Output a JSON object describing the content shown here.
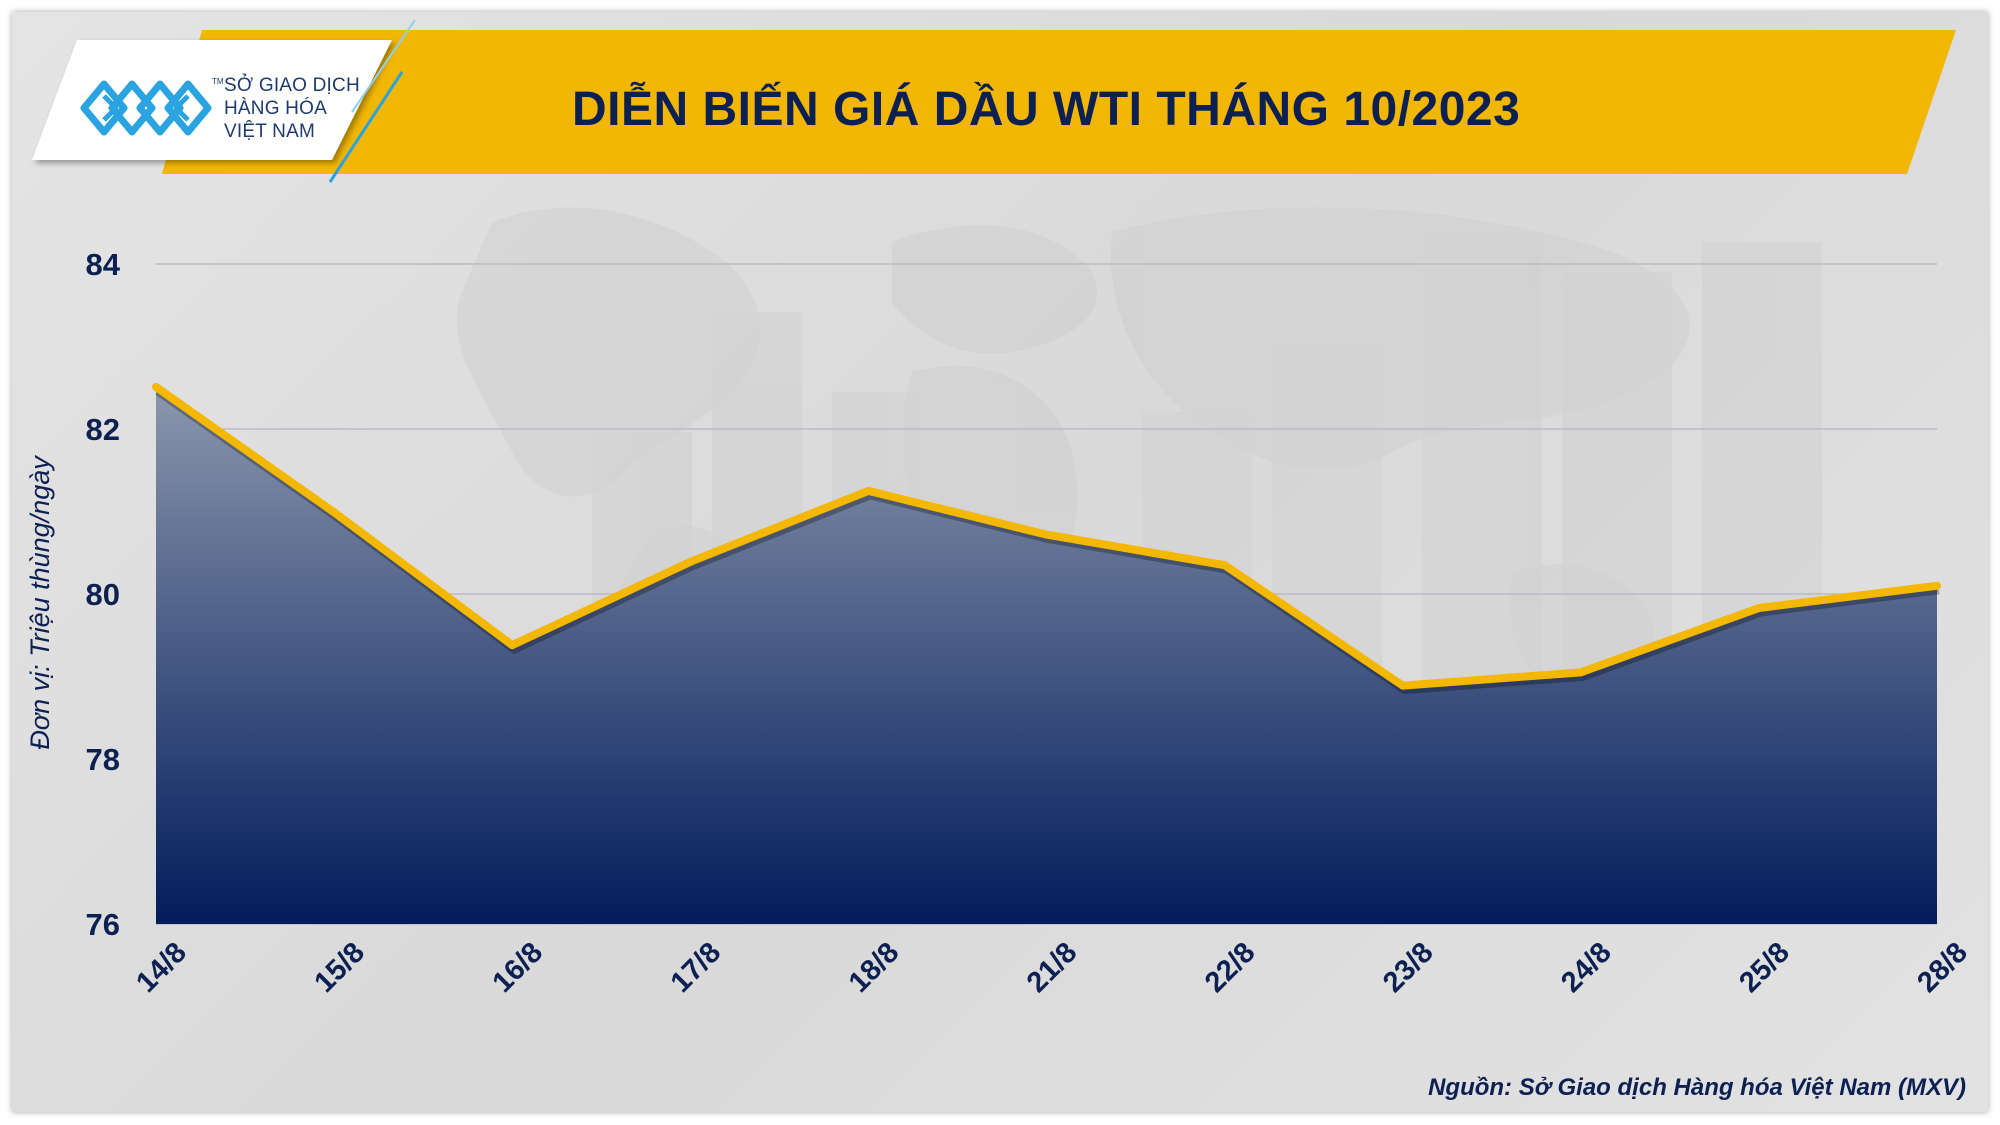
{
  "header": {
    "logo_lines": [
      "SỞ GIAO DỊCH",
      "HÀNG HÓA",
      "VIỆT NAM"
    ],
    "logo_icon": "mxv-logo-icon",
    "title": "DIỄN BIẾN GIÁ DẦU WTI THÁNG 10/2023"
  },
  "footer": {
    "source": "Nguồn: Sở Giao dịch Hàng hóa Việt Nam (MXV)"
  },
  "colors": {
    "title_band": "#f2b705",
    "line": "#f5b800",
    "fill_top": "#8b97ad",
    "fill_bottom": "#021c5c",
    "text_dark": "#0d2052",
    "logo_blue": "#2aa4e0"
  },
  "chart_data": {
    "type": "area",
    "title": "DIỄN BIẾN GIÁ DẦU WTI THÁNG 10/2023",
    "xlabel": "",
    "ylabel": "Đơn vị: Triệu thùng/ngày",
    "categories": [
      "14/8",
      "15/8",
      "16/8",
      "17/8",
      "18/8",
      "21/8",
      "22/8",
      "23/8",
      "24/8",
      "25/8",
      "28/8"
    ],
    "series": [
      {
        "values": [
          82.51,
          80.99,
          79.38,
          80.39,
          81.25,
          80.72,
          80.35,
          78.89,
          79.05,
          79.83,
          80.1
        ]
      }
    ],
    "ylim": [
      76,
      84
    ],
    "yticks": [
      76,
      78,
      80,
      82,
      84
    ],
    "grid": true,
    "legend": "none"
  }
}
